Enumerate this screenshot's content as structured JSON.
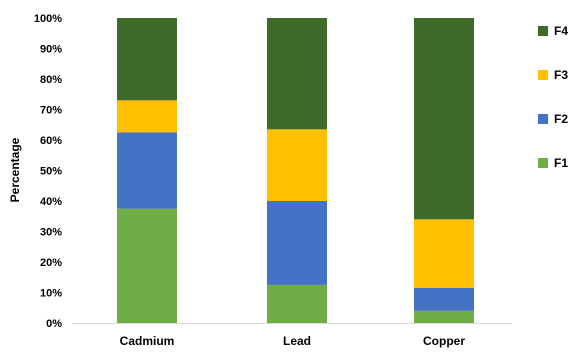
{
  "chart_data": {
    "type": "bar",
    "stacked": true,
    "percent": true,
    "categories": [
      "Cadmium",
      "Lead",
      "Copper"
    ],
    "series": [
      {
        "name": "F1",
        "color": "#70AD47",
        "values": [
          37.5,
          12.5,
          4.0
        ]
      },
      {
        "name": "F2",
        "color": "#4472C4",
        "values": [
          25.0,
          27.5,
          7.5
        ]
      },
      {
        "name": "F3",
        "color": "#FFC000",
        "values": [
          10.5,
          23.5,
          22.5
        ]
      },
      {
        "name": "F4",
        "color": "#3F6B2A",
        "values": [
          27.0,
          36.5,
          66.0
        ]
      }
    ],
    "title": "",
    "xlabel": "",
    "ylabel": "Percentage",
    "ylim": [
      0,
      100
    ],
    "yticks": [
      "0%",
      "10%",
      "20%",
      "30%",
      "40%",
      "50%",
      "60%",
      "70%",
      "80%",
      "90%",
      "100%"
    ],
    "grid": false,
    "legend_position": "right",
    "legend_order": [
      "F4",
      "F3",
      "F2",
      "F1"
    ]
  }
}
